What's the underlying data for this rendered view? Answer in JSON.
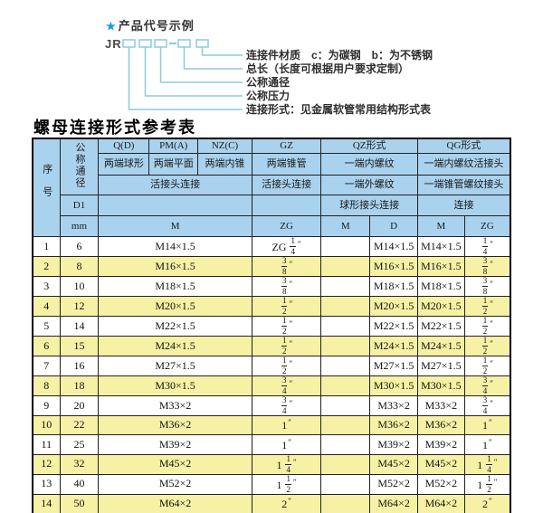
{
  "colors": {
    "header_blue": "#a9d2ee",
    "row_yellow": "#f6f1a4",
    "line_blue": "#8ec9e2",
    "star_blue": "#1e9ad6"
  },
  "diagram": {
    "star": "★",
    "heading": "产品代号示例",
    "code_prefix": "JR",
    "labels": [
      "连接件材质　c：为碳钢　b：为不锈钢",
      "总长（长度可根据用户要求定制）",
      "公称通径",
      "公称压力",
      "连接形式：见金属软管常用结构形式表"
    ]
  },
  "table": {
    "title": "螺母连接形式参考表",
    "header": {
      "seq": "序号",
      "dn": "公称通径",
      "d1": "D1",
      "mm": "mm",
      "groups": [
        "Q(D)",
        "PM(A)",
        "NZ(C)",
        "GZ",
        "QZ形式",
        "QG形式"
      ],
      "sub_row2": [
        "两端球形",
        "两端平面",
        "两端内锥",
        "两端锥管",
        "一端内螺纹",
        "一端内螺纹活接头"
      ],
      "sub_row3": [
        "活接头连接",
        "活接头连接",
        "一端外螺纹",
        "一端锥管螺纹接头"
      ],
      "sub_row4": [
        "球形接头连接",
        "连接"
      ],
      "units": [
        "M",
        "ZG",
        "M",
        "D",
        "M",
        "ZG"
      ]
    },
    "rows": [
      {
        "no": "1",
        "dn": "6",
        "m": "M14×1.5",
        "zg": "ZG 1/4″",
        "qz_m": "",
        "qz_d": "M14×1.5",
        "qg_m": "M14×1.5",
        "qg_zg": "1/4″"
      },
      {
        "no": "2",
        "dn": "8",
        "m": "M16×1.5",
        "zg": "3/8″",
        "qz_m": "",
        "qz_d": "M16×1.5",
        "qg_m": "M16×1.5",
        "qg_zg": "3/8″"
      },
      {
        "no": "3",
        "dn": "10",
        "m": "M18×1.5",
        "zg": "3/8″",
        "qz_m": "",
        "qz_d": "M18×1.5",
        "qg_m": "M18×1.5",
        "qg_zg": "3/8″"
      },
      {
        "no": "4",
        "dn": "12",
        "m": "M20×1.5",
        "zg": "1/2″",
        "qz_m": "",
        "qz_d": "M20×1.5",
        "qg_m": "M20×1.5",
        "qg_zg": "1/2″"
      },
      {
        "no": "5",
        "dn": "14",
        "m": "M22×1.5",
        "zg": "1/2″",
        "qz_m": "",
        "qz_d": "M22×1.5",
        "qg_m": "M22×1.5",
        "qg_zg": "1/2″"
      },
      {
        "no": "6",
        "dn": "15",
        "m": "M24×1.5",
        "zg": "1/2″",
        "qz_m": "",
        "qz_d": "M24×1.5",
        "qg_m": "M24×1.5",
        "qg_zg": "1/2″"
      },
      {
        "no": "7",
        "dn": "16",
        "m": "M27×1.5",
        "zg": "1/2″",
        "qz_m": "",
        "qz_d": "M27×1.5",
        "qg_m": "M27×1.5",
        "qg_zg": "1/2″"
      },
      {
        "no": "8",
        "dn": "18",
        "m": "M30×1.5",
        "zg": "3/4″",
        "qz_m": "",
        "qz_d": "M30×1.5",
        "qg_m": "M30×1.5",
        "qg_zg": "3/4″"
      },
      {
        "no": "9",
        "dn": "20",
        "m": "M33×2",
        "zg": "3/4″",
        "qz_m": "",
        "qz_d": "M33×2",
        "qg_m": "M33×2",
        "qg_zg": "3/4″"
      },
      {
        "no": "10",
        "dn": "22",
        "m": "M36×2",
        "zg": "1″",
        "qz_m": "",
        "qz_d": "M36×2",
        "qg_m": "M36×2",
        "qg_zg": "1″"
      },
      {
        "no": "11",
        "dn": "25",
        "m": "M39×2",
        "zg": "1″",
        "qz_m": "",
        "qz_d": "M39×2",
        "qg_m": "M39×2",
        "qg_zg": "1″"
      },
      {
        "no": "12",
        "dn": "32",
        "m": "M45×2",
        "zg": "1 1/4″",
        "qz_m": "",
        "qz_d": "M45×2",
        "qg_m": "M45×2",
        "qg_zg": "1 1/4″"
      },
      {
        "no": "13",
        "dn": "40",
        "m": "M52×2",
        "zg": "1 1/2″",
        "qz_m": "",
        "qz_d": "M52×2",
        "qg_m": "M52×2",
        "qg_zg": "1 1/2″"
      },
      {
        "no": "14",
        "dn": "50",
        "m": "M64×2",
        "zg": "2″",
        "qz_m": "",
        "qz_d": "M64×2",
        "qg_m": "M64×2",
        "qg_zg": "2″"
      }
    ]
  }
}
